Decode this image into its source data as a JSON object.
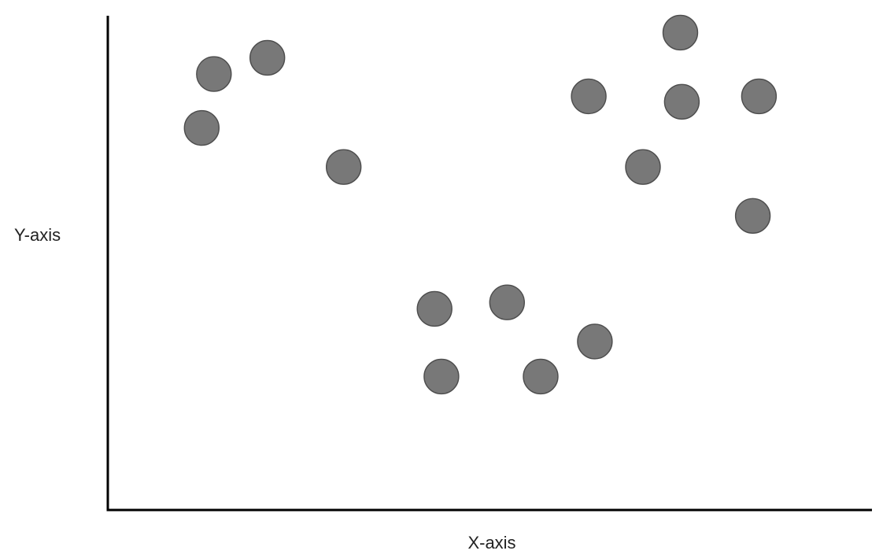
{
  "chart_data": {
    "type": "scatter",
    "title": "",
    "xlabel": "X-axis",
    "ylabel": "Y-axis",
    "xlim": [
      0,
      100
    ],
    "ylim": [
      0,
      100
    ],
    "ticks": false,
    "grid": false,
    "legend": "none",
    "marker_fill": "#787878",
    "marker_stroke": "#4d4d4d",
    "axis_color": "#000000",
    "series": [
      {
        "points": [
          {
            "x": 13.9,
            "y": 88.2
          },
          {
            "x": 20.9,
            "y": 91.5
          },
          {
            "x": 12.3,
            "y": 77.3
          },
          {
            "x": 30.9,
            "y": 69.4
          },
          {
            "x": 75.0,
            "y": 96.6
          },
          {
            "x": 63.0,
            "y": 83.7
          },
          {
            "x": 75.2,
            "y": 82.6
          },
          {
            "x": 85.3,
            "y": 83.7
          },
          {
            "x": 70.1,
            "y": 69.4
          },
          {
            "x": 84.5,
            "y": 59.5
          },
          {
            "x": 42.8,
            "y": 40.7
          },
          {
            "x": 52.3,
            "y": 42.0
          },
          {
            "x": 63.8,
            "y": 34.1
          },
          {
            "x": 43.7,
            "y": 27.0
          },
          {
            "x": 56.7,
            "y": 27.0
          }
        ]
      }
    ]
  }
}
